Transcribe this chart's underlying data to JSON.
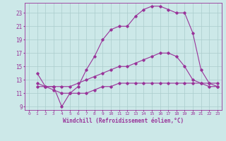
{
  "xlabel": "Windchill (Refroidissement éolien,°C)",
  "bg_color": "#cce8e8",
  "grid_color": "#aacccc",
  "line_color": "#993399",
  "xlim": [
    -0.5,
    23.5
  ],
  "ylim": [
    8.5,
    24.5
  ],
  "xticks": [
    0,
    1,
    2,
    3,
    4,
    5,
    6,
    7,
    8,
    9,
    10,
    11,
    12,
    13,
    14,
    15,
    16,
    17,
    18,
    19,
    20,
    21,
    22,
    23
  ],
  "yticks": [
    9,
    11,
    13,
    15,
    17,
    19,
    21,
    23
  ],
  "line1_x": [
    1,
    2,
    3,
    4,
    5,
    6,
    7,
    8,
    9,
    10,
    11,
    12,
    13,
    14,
    15,
    16,
    17,
    18,
    19,
    20,
    21,
    22,
    23
  ],
  "line1_y": [
    12.5,
    12.0,
    12.0,
    9.0,
    11.0,
    12.0,
    14.5,
    16.5,
    19.0,
    20.5,
    21.0,
    21.0,
    22.5,
    23.5,
    24.0,
    24.0,
    23.5,
    23.0,
    23.0,
    20.0,
    14.5,
    12.5,
    12.0
  ],
  "line2_x": [
    1,
    2,
    3,
    4,
    5,
    6,
    7,
    8,
    9,
    10,
    11,
    12,
    13,
    14,
    15,
    16,
    17,
    18,
    19,
    20,
    21,
    22,
    23
  ],
  "line2_y": [
    14.0,
    12.0,
    12.0,
    12.0,
    12.0,
    12.5,
    13.0,
    13.5,
    14.0,
    14.5,
    15.0,
    15.0,
    15.5,
    16.0,
    16.5,
    17.0,
    17.0,
    16.5,
    15.0,
    13.0,
    12.5,
    12.0,
    12.0
  ],
  "line3_x": [
    1,
    2,
    3,
    4,
    5,
    6,
    7,
    8,
    9,
    10,
    11,
    12,
    13,
    14,
    15,
    16,
    17,
    18,
    19,
    20,
    21,
    22,
    23
  ],
  "line3_y": [
    12.0,
    12.0,
    11.5,
    11.0,
    11.0,
    11.0,
    11.0,
    11.5,
    12.0,
    12.0,
    12.5,
    12.5,
    12.5,
    12.5,
    12.5,
    12.5,
    12.5,
    12.5,
    12.5,
    12.5,
    12.5,
    12.5,
    12.5
  ]
}
